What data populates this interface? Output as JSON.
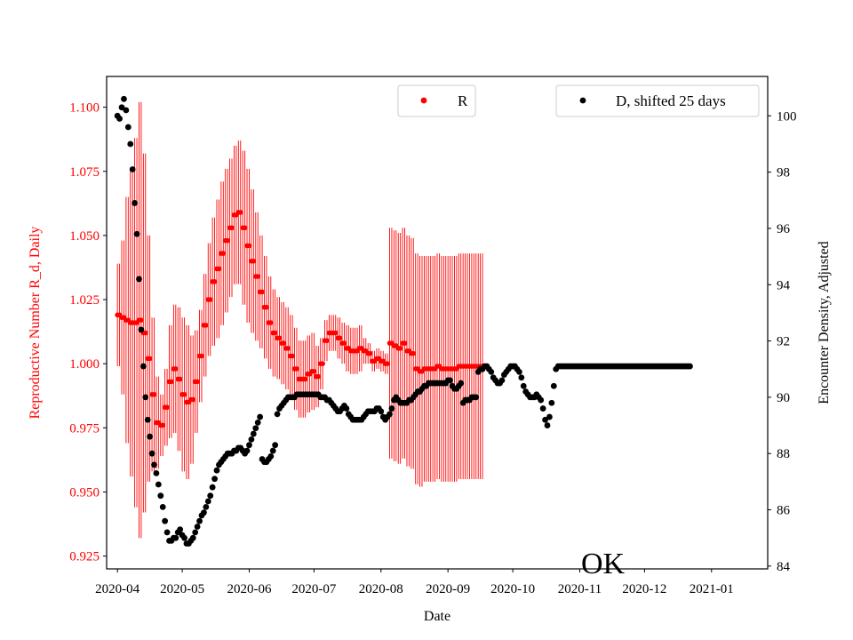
{
  "chart_data": {
    "type": "scatter",
    "xlabel": "Date",
    "ylabel_left": "Reproductive Number R_d, Daily",
    "ylabel_right": "Encounter Density, Adjusted",
    "annotation": "OK",
    "x_range": [
      "2020-03-27",
      "2021-01-27"
    ],
    "ylim_left": [
      0.92,
      1.112
    ],
    "ylim_right": [
      83.9,
      101.4
    ],
    "x_ticks": [
      "2020-04",
      "2020-05",
      "2020-06",
      "2020-07",
      "2020-08",
      "2020-09",
      "2020-10",
      "2020-11",
      "2020-12",
      "2021-01"
    ],
    "y_ticks_left": [
      "0.925",
      "0.950",
      "0.975",
      "1.000",
      "1.025",
      "1.050",
      "1.075",
      "1.100"
    ],
    "y_ticks_right": [
      "84",
      "86",
      "88",
      "90",
      "92",
      "94",
      "96",
      "98",
      "100"
    ],
    "legend": [
      {
        "label": "R",
        "color": "#ff0000",
        "position": "upper-center"
      },
      {
        "label": "D, shifted 25 days",
        "color": "#000000",
        "position": "upper-right"
      }
    ],
    "colors": {
      "r_series": "#ff0000",
      "d_series": "#000000",
      "left_axis": "#ff0000",
      "right_axis": "#000000"
    },
    "series": [
      {
        "name": "R",
        "axis": "left",
        "start_date": "2020-04-01",
        "step_days": 2,
        "values": [
          1.019,
          1.018,
          1.017,
          1.016,
          1.016,
          1.017,
          1.012,
          1.002,
          0.988,
          0.977,
          0.976,
          0.983,
          0.993,
          0.998,
          0.994,
          0.988,
          0.985,
          0.986,
          0.993,
          1.003,
          1.015,
          1.025,
          1.032,
          1.037,
          1.043,
          1.048,
          1.053,
          1.058,
          1.059,
          1.053,
          1.046,
          1.04,
          1.034,
          1.028,
          1.022,
          1.016,
          1.012,
          1.01,
          1.008,
          1.006,
          1.003,
          0.998,
          0.994,
          0.994,
          0.996,
          0.997,
          0.995,
          1.0,
          1.009,
          1.012,
          1.012,
          1.01,
          1.008,
          1.006,
          1.005,
          1.005,
          1.006,
          1.005,
          1.004,
          1.001,
          1.002,
          1.001,
          1.0,
          1.008,
          1.007,
          1.006,
          1.008,
          1.005,
          1.004,
          0.998,
          0.997,
          0.998,
          0.998,
          0.998,
          0.999,
          0.998,
          0.998,
          0.998,
          0.998,
          0.999,
          0.999,
          0.999,
          0.999,
          0.999,
          0.999
        ],
        "errors": [
          0.02,
          0.03,
          0.048,
          0.06,
          0.072,
          0.085,
          0.07,
          0.048,
          0.03,
          0.018,
          0.012,
          0.015,
          0.022,
          0.025,
          0.028,
          0.03,
          0.03,
          0.025,
          0.02,
          0.018,
          0.02,
          0.022,
          0.025,
          0.027,
          0.028,
          0.028,
          0.027,
          0.027,
          0.028,
          0.03,
          0.03,
          0.028,
          0.025,
          0.022,
          0.02,
          0.018,
          0.017,
          0.016,
          0.016,
          0.016,
          0.016,
          0.016,
          0.015,
          0.015,
          0.015,
          0.015,
          0.012,
          0.01,
          0.008,
          0.007,
          0.007,
          0.008,
          0.008,
          0.009,
          0.009,
          0.009,
          0.009,
          0.005,
          0.004,
          0.004,
          0.004,
          0.004,
          0.004,
          0.045,
          0.045,
          0.045,
          0.045,
          0.045,
          0.045,
          0.045,
          0.045,
          0.044,
          0.044,
          0.044,
          0.044,
          0.044,
          0.044,
          0.044,
          0.044,
          0.044,
          0.044,
          0.044,
          0.044,
          0.044,
          0.044
        ]
      },
      {
        "name": "D, shifted 25 days",
        "axis": "right",
        "start_date": "2020-04-01",
        "step_days": 1,
        "values": [
          100.0,
          99.9,
          100.3,
          100.6,
          100.2,
          99.6,
          99.0,
          98.1,
          96.9,
          95.8,
          94.2,
          92.4,
          91.1,
          90.0,
          89.2,
          88.6,
          88.0,
          87.6,
          87.3,
          86.9,
          86.5,
          86.1,
          85.6,
          85.2,
          84.9,
          84.9,
          85.0,
          85.0,
          85.2,
          85.3,
          85.1,
          85.0,
          84.8,
          84.8,
          84.9,
          85.0,
          85.2,
          85.4,
          85.6,
          85.8,
          85.9,
          86.1,
          86.3,
          86.5,
          86.8,
          87.1,
          87.4,
          87.6,
          87.7,
          87.8,
          87.9,
          88.0,
          88.0,
          88.0,
          88.1,
          88.1,
          88.2,
          88.2,
          88.1,
          88.0,
          88.1,
          88.3,
          88.5,
          88.7,
          88.9,
          89.1,
          89.3,
          87.8,
          87.7,
          87.7,
          87.8,
          87.9,
          88.1,
          88.3,
          89.4,
          89.6,
          89.7,
          89.8,
          89.9,
          90.0,
          90.0,
          90.0,
          90.0,
          90.1,
          90.1,
          90.1,
          90.1,
          90.1,
          90.1,
          90.1,
          90.1,
          90.1,
          90.1,
          90.1,
          90.0,
          90.0,
          90.0,
          89.9,
          89.9,
          89.8,
          89.7,
          89.6,
          89.5,
          89.5,
          89.6,
          89.7,
          89.6,
          89.4,
          89.3,
          89.2,
          89.2,
          89.2,
          89.2,
          89.2,
          89.3,
          89.4,
          89.5,
          89.5,
          89.5,
          89.5,
          89.6,
          89.6,
          89.5,
          89.3,
          89.2,
          89.3,
          89.4,
          89.6,
          89.9,
          90.0,
          89.9,
          89.8,
          89.8,
          89.8,
          89.8,
          89.9,
          89.9,
          90.0,
          90.1,
          90.2,
          90.2,
          90.3,
          90.4,
          90.4,
          90.5,
          90.5,
          90.5,
          90.5,
          90.5,
          90.5,
          90.5,
          90.5,
          90.5,
          90.6,
          90.6,
          90.4,
          90.3,
          90.3,
          90.4,
          90.5,
          89.8,
          89.9,
          89.9,
          89.9,
          90.0,
          90.0,
          90.0,
          90.9,
          91.0,
          91.0,
          91.1,
          91.1,
          91.0,
          90.9,
          90.7,
          90.6,
          90.5,
          90.5,
          90.6,
          90.8,
          90.9,
          91.0,
          91.1,
          91.1,
          91.1,
          91.0,
          90.9,
          90.7,
          90.4,
          90.2,
          90.1,
          90.0,
          90.0,
          90.0,
          90.1,
          90.0,
          89.9,
          89.6,
          89.2,
          89.0,
          89.3,
          89.8,
          90.4,
          91.0,
          91.1,
          91.1,
          91.1,
          91.1,
          91.1,
          91.1,
          91.1,
          91.1,
          91.1,
          91.1,
          91.1,
          91.1,
          91.1,
          91.1,
          91.1,
          91.1,
          91.1,
          91.1,
          91.1,
          91.1,
          91.1,
          91.1,
          91.1,
          91.1,
          91.1,
          91.1,
          91.1,
          91.1,
          91.1,
          91.1,
          91.1,
          91.1,
          91.1,
          91.1,
          91.1,
          91.1,
          91.1,
          91.1,
          91.1,
          91.1,
          91.1,
          91.1,
          91.1,
          91.1,
          91.1,
          91.1,
          91.1,
          91.1,
          91.1,
          91.1,
          91.1,
          91.1,
          91.1,
          91.1,
          91.1,
          91.1,
          91.1,
          91.1,
          91.1,
          91.1,
          91.1,
          91.1
        ]
      }
    ]
  }
}
